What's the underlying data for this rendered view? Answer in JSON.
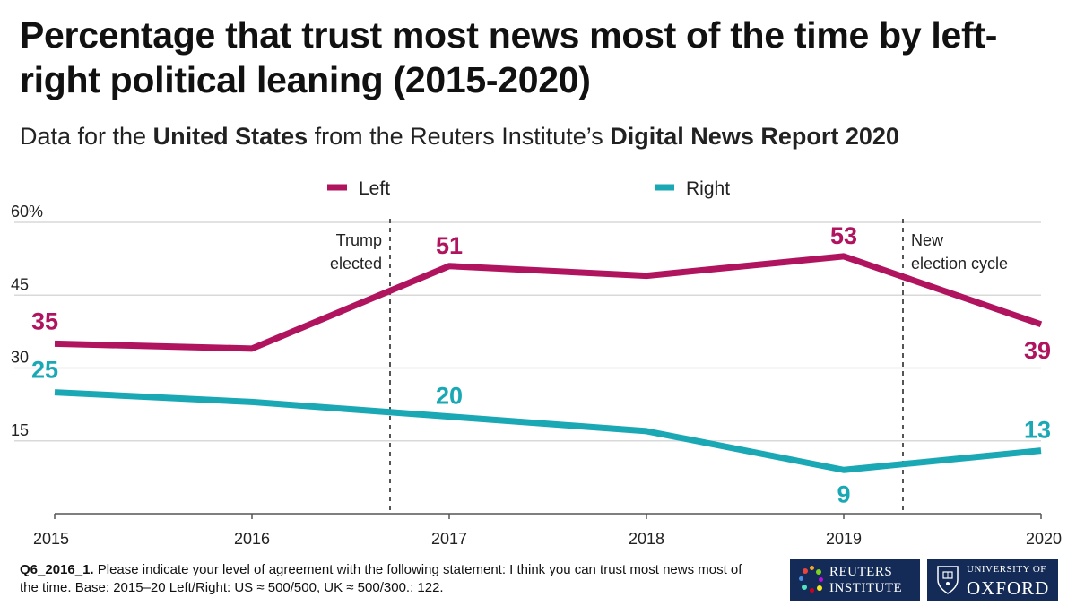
{
  "header": {
    "title": "Percentage that trust most news most of the time by left-right political leaning (2015-2020)",
    "subtitle_parts": {
      "p1": "Data for the ",
      "b1": "United States",
      "p2": " from the Reuters Institute’s ",
      "b2": "Digital News Report 2020"
    }
  },
  "chart_data": {
    "type": "line",
    "title": "Percentage that trust most news most of the time by left-right political leaning (2015-2020)",
    "x": [
      "2015",
      "2016",
      "2017",
      "2018",
      "2019",
      "2020"
    ],
    "ylim": [
      0,
      60
    ],
    "yticks": [
      "60%",
      "45",
      "30",
      "15"
    ],
    "ytick_values": [
      60,
      45,
      30,
      15
    ],
    "grid": true,
    "legend_placement": "top",
    "series": [
      {
        "name": "Left",
        "color": "#b0145f",
        "values": [
          35,
          34,
          51,
          49,
          53,
          39
        ],
        "labels": [
          "35",
          null,
          "51",
          null,
          "53",
          "39"
        ]
      },
      {
        "name": "Right",
        "color": "#1aa8b5",
        "values": [
          25,
          23,
          20,
          17,
          9,
          13
        ],
        "labels": [
          "25",
          null,
          "20",
          null,
          "9",
          "13"
        ]
      }
    ],
    "annotations": [
      {
        "x": 2016.7,
        "lines": [
          "Trump",
          "elected"
        ],
        "side": "left"
      },
      {
        "x": 2019.3,
        "lines": [
          "New",
          "election cycle"
        ],
        "side": "right"
      }
    ]
  },
  "footnote": {
    "code": "Q6_2016_1.",
    "text": " Please indicate your level of agreement with the following statement: I think you can trust most news most of the time. Base: 2015–20 Left/Right: US ≈ 500/500, UK ≈ 500/300.: 122."
  },
  "logos": {
    "reuters": {
      "line1": "REUTERS",
      "line2": "INSTITUTE"
    },
    "oxford": {
      "line1": "UNIVERSITY OF",
      "line2": "OXFORD"
    }
  },
  "colors": {
    "logo_bg": "#142b57",
    "grid": "#d9d9d9",
    "annotation_line": "#555555"
  }
}
